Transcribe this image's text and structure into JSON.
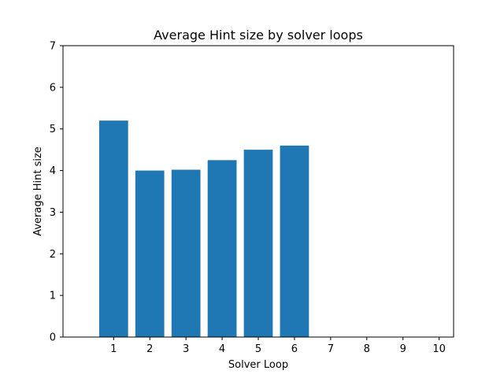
{
  "chart_data": {
    "type": "bar",
    "title": "Average Hint size by solver loops",
    "xlabel": "Solver Loop",
    "ylabel": "Average Hint size",
    "categories": [
      "1",
      "2",
      "3",
      "4",
      "5",
      "6",
      "7",
      "8",
      "9",
      "10"
    ],
    "values": [
      5.2,
      4.0,
      4.02,
      4.25,
      4.5,
      4.6,
      0,
      0,
      0,
      0
    ],
    "ylim": [
      0,
      7
    ],
    "yticks": [
      0,
      1,
      2,
      3,
      4,
      5,
      6,
      7
    ],
    "bar_color": "#1f77b4",
    "grid": false,
    "legend": "none"
  }
}
